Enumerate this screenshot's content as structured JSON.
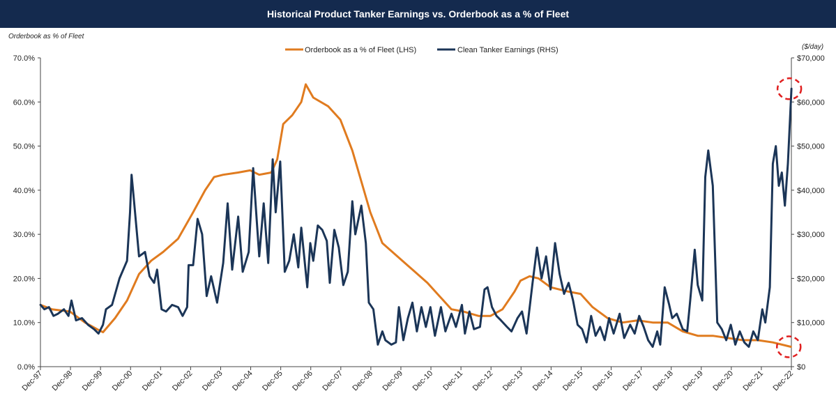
{
  "title": "Historical Product Tanker Earnings vs. Orderbook as a % of Fleet",
  "left_axis_note": "Orderbook as % of Fleet",
  "right_axis_note": "($/day)",
  "colors": {
    "title_bg": "#142a4e",
    "orderbook": "#e07b1f",
    "earnings": "#1b3557",
    "highlight": "#e02020"
  },
  "chart_data": {
    "type": "line",
    "left_axis": {
      "ticks": [
        "0.0%",
        "10.0%",
        "20.0%",
        "30.0%",
        "40.0%",
        "50.0%",
        "60.0%",
        "70.0%"
      ],
      "ylim": [
        0,
        70
      ]
    },
    "right_axis": {
      "ticks": [
        "$0",
        "$10,000",
        "$20,000",
        "$30,000",
        "$40,000",
        "$50,000",
        "$60,000",
        "$70,000"
      ],
      "ylim": [
        0,
        70000
      ]
    },
    "x_ticks": [
      "Dec-97",
      "Dec-98",
      "Dec-99",
      "Dec-00",
      "Dec-01",
      "Dec-02",
      "Dec-03",
      "Dec-04",
      "Dec-05",
      "Dec-06",
      "Dec-07",
      "Dec-08",
      "Dec-09",
      "Dec-10",
      "Dec-11",
      "Dec-12",
      "Dec-13",
      "Dec-14",
      "Dec-15",
      "Dec-16",
      "Dec-17",
      "Dec-18",
      "Dec-19",
      "Dec-20",
      "Dec-21",
      "Dec-22"
    ],
    "x_range": [
      1997.917,
      2022.917
    ],
    "grid": false,
    "legend_position": "top-center",
    "highlights": [
      "top-right",
      "bottom-right"
    ],
    "series": [
      {
        "name": "Orderbook as a % of Fleet (LHS)",
        "axis": "left",
        "points": [
          [
            1997.92,
            14
          ],
          [
            1998.3,
            13
          ],
          [
            1998.9,
            12.5
          ],
          [
            1999.4,
            10
          ],
          [
            1999.8,
            8.5
          ],
          [
            2000.0,
            7.8
          ],
          [
            2000.4,
            11
          ],
          [
            2000.8,
            15
          ],
          [
            2001.2,
            21
          ],
          [
            2001.6,
            24
          ],
          [
            2002.0,
            26
          ],
          [
            2002.5,
            29
          ],
          [
            2003.0,
            35
          ],
          [
            2003.4,
            40
          ],
          [
            2003.7,
            43
          ],
          [
            2004.0,
            43.5
          ],
          [
            2004.5,
            44
          ],
          [
            2004.9,
            44.5
          ],
          [
            2005.2,
            43.5
          ],
          [
            2005.6,
            44
          ],
          [
            2005.8,
            47
          ],
          [
            2006.0,
            55
          ],
          [
            2006.3,
            57
          ],
          [
            2006.6,
            60
          ],
          [
            2006.75,
            64
          ],
          [
            2007.0,
            61
          ],
          [
            2007.5,
            59
          ],
          [
            2007.9,
            56
          ],
          [
            2008.3,
            49
          ],
          [
            2008.6,
            42
          ],
          [
            2008.9,
            35
          ],
          [
            2009.3,
            28
          ],
          [
            2009.8,
            25
          ],
          [
            2010.3,
            22
          ],
          [
            2010.8,
            19
          ],
          [
            2011.2,
            16
          ],
          [
            2011.6,
            13
          ],
          [
            2012.0,
            12.5
          ],
          [
            2012.5,
            11.5
          ],
          [
            2012.9,
            11.5
          ],
          [
            2013.3,
            13
          ],
          [
            2013.7,
            17
          ],
          [
            2013.9,
            19.5
          ],
          [
            2014.2,
            20.5
          ],
          [
            2014.5,
            20
          ],
          [
            2014.9,
            18
          ],
          [
            2015.2,
            17.5
          ],
          [
            2015.5,
            17
          ],
          [
            2015.9,
            16.5
          ],
          [
            2016.3,
            13.5
          ],
          [
            2016.8,
            11
          ],
          [
            2017.3,
            10
          ],
          [
            2017.8,
            10.5
          ],
          [
            2018.3,
            10
          ],
          [
            2018.8,
            10
          ],
          [
            2019.3,
            8
          ],
          [
            2019.8,
            7
          ],
          [
            2020.3,
            7
          ],
          [
            2020.8,
            6.5
          ],
          [
            2021.3,
            6
          ],
          [
            2021.8,
            6
          ],
          [
            2022.3,
            5.5
          ],
          [
            2022.9,
            4.5
          ]
        ]
      },
      {
        "name": "Clean Tanker Earnings (RHS)",
        "axis": "right",
        "points": [
          [
            1997.92,
            14000
          ],
          [
            1998.05,
            13000
          ],
          [
            1998.2,
            13500
          ],
          [
            1998.35,
            11500
          ],
          [
            1998.5,
            12000
          ],
          [
            1998.7,
            13000
          ],
          [
            1998.85,
            11500
          ],
          [
            1998.95,
            15000
          ],
          [
            1999.1,
            10500
          ],
          [
            1999.3,
            11000
          ],
          [
            1999.5,
            9500
          ],
          [
            1999.7,
            8500
          ],
          [
            1999.85,
            7500
          ],
          [
            2000.0,
            9500
          ],
          [
            2000.1,
            13000
          ],
          [
            2000.3,
            14000
          ],
          [
            2000.55,
            20000
          ],
          [
            2000.8,
            24000
          ],
          [
            2000.9,
            35000
          ],
          [
            2000.95,
            43500
          ],
          [
            2001.0,
            40000
          ],
          [
            2001.2,
            25000
          ],
          [
            2001.4,
            26000
          ],
          [
            2001.55,
            20500
          ],
          [
            2001.7,
            19000
          ],
          [
            2001.8,
            22000
          ],
          [
            2001.95,
            13000
          ],
          [
            2002.1,
            12500
          ],
          [
            2002.3,
            14000
          ],
          [
            2002.5,
            13500
          ],
          [
            2002.65,
            11500
          ],
          [
            2002.8,
            13500
          ],
          [
            2002.85,
            23000
          ],
          [
            2003.0,
            23000
          ],
          [
            2003.15,
            33500
          ],
          [
            2003.3,
            30000
          ],
          [
            2003.45,
            16000
          ],
          [
            2003.6,
            20500
          ],
          [
            2003.8,
            14500
          ],
          [
            2004.0,
            23500
          ],
          [
            2004.15,
            37000
          ],
          [
            2004.3,
            22000
          ],
          [
            2004.5,
            34000
          ],
          [
            2004.65,
            21500
          ],
          [
            2004.85,
            26000
          ],
          [
            2005.0,
            45000
          ],
          [
            2005.1,
            35000
          ],
          [
            2005.2,
            25000
          ],
          [
            2005.35,
            37000
          ],
          [
            2005.5,
            23500
          ],
          [
            2005.65,
            47000
          ],
          [
            2005.75,
            35000
          ],
          [
            2005.9,
            46500
          ],
          [
            2006.05,
            21500
          ],
          [
            2006.2,
            24000
          ],
          [
            2006.35,
            30000
          ],
          [
            2006.5,
            22500
          ],
          [
            2006.6,
            31500
          ],
          [
            2006.8,
            18000
          ],
          [
            2006.9,
            28000
          ],
          [
            2007.0,
            24000
          ],
          [
            2007.15,
            32000
          ],
          [
            2007.3,
            31000
          ],
          [
            2007.45,
            28500
          ],
          [
            2007.55,
            19000
          ],
          [
            2007.7,
            31000
          ],
          [
            2007.85,
            27000
          ],
          [
            2008.0,
            18500
          ],
          [
            2008.15,
            21500
          ],
          [
            2008.3,
            37500
          ],
          [
            2008.4,
            30000
          ],
          [
            2008.6,
            36500
          ],
          [
            2008.75,
            28000
          ],
          [
            2008.85,
            14500
          ],
          [
            2009.0,
            13000
          ],
          [
            2009.15,
            5000
          ],
          [
            2009.3,
            8000
          ],
          [
            2009.4,
            6000
          ],
          [
            2009.6,
            5000
          ],
          [
            2009.75,
            5500
          ],
          [
            2009.85,
            13500
          ],
          [
            2010.0,
            6000
          ],
          [
            2010.15,
            11000
          ],
          [
            2010.3,
            14500
          ],
          [
            2010.45,
            8000
          ],
          [
            2010.6,
            13500
          ],
          [
            2010.75,
            9000
          ],
          [
            2010.9,
            13500
          ],
          [
            2011.05,
            7000
          ],
          [
            2011.25,
            13500
          ],
          [
            2011.4,
            8000
          ],
          [
            2011.6,
            12000
          ],
          [
            2011.75,
            9000
          ],
          [
            2011.95,
            14000
          ],
          [
            2012.05,
            7500
          ],
          [
            2012.2,
            12500
          ],
          [
            2012.35,
            8500
          ],
          [
            2012.55,
            9000
          ],
          [
            2012.7,
            17500
          ],
          [
            2012.8,
            18000
          ],
          [
            2012.95,
            13500
          ],
          [
            2013.1,
            11500
          ],
          [
            2013.25,
            10500
          ],
          [
            2013.45,
            9000
          ],
          [
            2013.6,
            8000
          ],
          [
            2013.8,
            11000
          ],
          [
            2013.95,
            12500
          ],
          [
            2014.1,
            7500
          ],
          [
            2014.3,
            19000
          ],
          [
            2014.45,
            27000
          ],
          [
            2014.6,
            20000
          ],
          [
            2014.75,
            25000
          ],
          [
            2014.9,
            17500
          ],
          [
            2015.05,
            28000
          ],
          [
            2015.2,
            21000
          ],
          [
            2015.35,
            16500
          ],
          [
            2015.5,
            19000
          ],
          [
            2015.65,
            15000
          ],
          [
            2015.8,
            9500
          ],
          [
            2015.95,
            8500
          ],
          [
            2016.1,
            5500
          ],
          [
            2016.25,
            11500
          ],
          [
            2016.4,
            7000
          ],
          [
            2016.55,
            9000
          ],
          [
            2016.7,
            6000
          ],
          [
            2016.85,
            11000
          ],
          [
            2017.0,
            7500
          ],
          [
            2017.2,
            12000
          ],
          [
            2017.35,
            6500
          ],
          [
            2017.55,
            9500
          ],
          [
            2017.7,
            7500
          ],
          [
            2017.85,
            11500
          ],
          [
            2018.0,
            9000
          ],
          [
            2018.15,
            6000
          ],
          [
            2018.3,
            4500
          ],
          [
            2018.45,
            8000
          ],
          [
            2018.55,
            5000
          ],
          [
            2018.7,
            18000
          ],
          [
            2018.85,
            14000
          ],
          [
            2018.95,
            11000
          ],
          [
            2019.1,
            12000
          ],
          [
            2019.3,
            8500
          ],
          [
            2019.45,
            8000
          ],
          [
            2019.55,
            15000
          ],
          [
            2019.7,
            26500
          ],
          [
            2019.8,
            18500
          ],
          [
            2019.95,
            15000
          ],
          [
            2020.05,
            43000
          ],
          [
            2020.15,
            49000
          ],
          [
            2020.3,
            41000
          ],
          [
            2020.45,
            10000
          ],
          [
            2020.6,
            8500
          ],
          [
            2020.75,
            6000
          ],
          [
            2020.9,
            9500
          ],
          [
            2021.05,
            5000
          ],
          [
            2021.2,
            8000
          ],
          [
            2021.35,
            5500
          ],
          [
            2021.5,
            4500
          ],
          [
            2021.65,
            8000
          ],
          [
            2021.8,
            6000
          ],
          [
            2021.95,
            13000
          ],
          [
            2022.05,
            10000
          ],
          [
            2022.2,
            18000
          ],
          [
            2022.3,
            46000
          ],
          [
            2022.4,
            50000
          ],
          [
            2022.5,
            41000
          ],
          [
            2022.6,
            44000
          ],
          [
            2022.7,
            36500
          ],
          [
            2022.8,
            46000
          ],
          [
            2022.92,
            63000
          ]
        ]
      }
    ]
  }
}
